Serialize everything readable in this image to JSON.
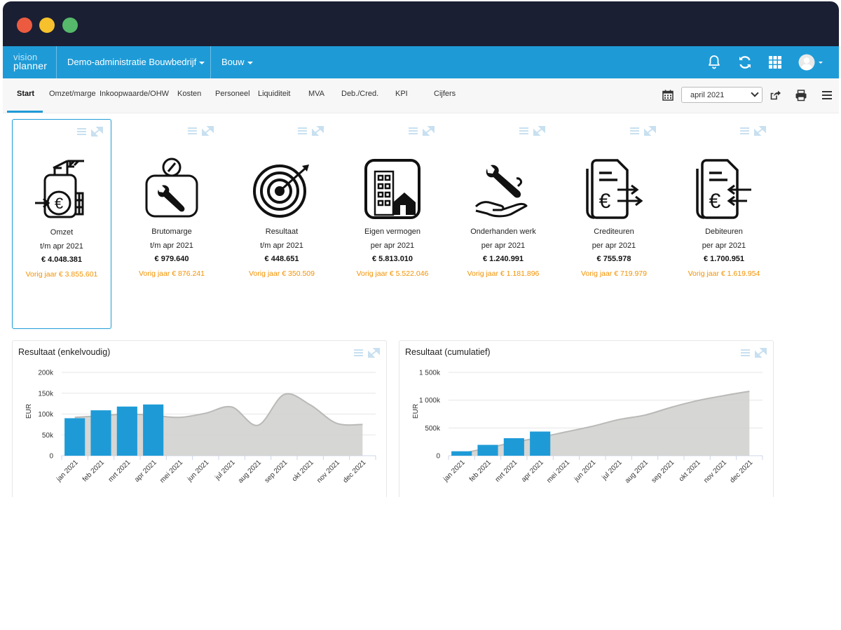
{
  "window": {
    "dots": [
      "#ec5b40",
      "#f6c12c",
      "#55b86a"
    ]
  },
  "app": {
    "logo_line1": "vision",
    "logo_line2": "planner",
    "administration": "Demo-administratie Bouwbedrijf",
    "sector": "Bouw",
    "icons": [
      "bell-icon",
      "sync-icon",
      "apps-grid-icon",
      "user-avatar-icon"
    ]
  },
  "nav": {
    "tabs": [
      "Start",
      "Omzet/marge",
      "Inkoopwaarde/OHW",
      "Kosten",
      "Personeel",
      "Liquiditeit",
      "MVA",
      "Deb./Cred.",
      "KPI",
      "Cijfers"
    ],
    "active_tab": "Start",
    "period": "april 2021",
    "icons": [
      "calendar-icon",
      "export-icon",
      "print-icon",
      "menu-icon"
    ]
  },
  "colors": {
    "accent": "#1e9bd7",
    "orange": "#f39200",
    "area": "#cfcfcd"
  },
  "tiles": [
    {
      "icon": "crane-euro-icon",
      "title": "Omzet",
      "period": "t/m apr 2021",
      "value": "€ 4.048.381",
      "prev": "Vorig jaar € 3.855.601"
    },
    {
      "icon": "wrench-scale-icon",
      "title": "Brutomarge",
      "period": "t/m apr 2021",
      "value": "€ 979.640",
      "prev": "Vorig jaar   € 876.241"
    },
    {
      "icon": "target-icon",
      "title": "Resultaat",
      "period": "t/m apr 2021",
      "value": "€ 448.651",
      "prev": "Vorig jaar   € 350.509"
    },
    {
      "icon": "buildings-icon",
      "title": "Eigen vermogen",
      "period": "per apr 2021",
      "value": "€ 5.813.010",
      "prev": "Vorig jaar € 5.522.046"
    },
    {
      "icon": "wrench-hand-icon",
      "title": "Onderhanden werk",
      "period": "per apr 2021",
      "value": "€ 1.240.991",
      "prev": "Vorig jaar € 1.181.896"
    },
    {
      "icon": "invoice-out-icon",
      "title": "Crediteuren",
      "period": "per apr 2021",
      "value": "€ 755.978",
      "prev": "Vorig jaar € 719.979"
    },
    {
      "icon": "invoice-in-icon",
      "title": "Debiteuren",
      "period": "per apr 2021",
      "value": "€ 1.700.951",
      "prev": "Vorig jaar € 1.619.954"
    }
  ],
  "chart_data": [
    {
      "type": "bar",
      "title": "Resultaat (enkelvoudig)",
      "xlabel": "",
      "ylabel": "EUR",
      "categories": [
        "jan 2021",
        "feb 2021",
        "mrt 2021",
        "apr 2021",
        "mei 2021",
        "jun 2021",
        "jul 2021",
        "aug 2021",
        "sep 2021",
        "okt 2021",
        "nov 2021",
        "dec 2021"
      ],
      "yticks": [
        "0",
        "50k",
        "100k",
        "150k",
        "200k"
      ],
      "ylim": [
        0,
        200000
      ],
      "grid": true,
      "series": [
        {
          "kind": "bar",
          "color": "#1e9bd7",
          "values": [
            90000,
            109000,
            118000,
            123000,
            null,
            null,
            null,
            null,
            null,
            null,
            null,
            null
          ]
        },
        {
          "kind": "area",
          "color": "#cfcfcd",
          "values": [
            92000,
            96000,
            100000,
            97000,
            92000,
            102000,
            117000,
            73000,
            147000,
            122000,
            78000,
            75000
          ]
        }
      ]
    },
    {
      "type": "bar",
      "title": "Resultaat (cumulatief)",
      "xlabel": "",
      "ylabel": "EUR",
      "categories": [
        "jan 2021",
        "feb 2021",
        "mrt 2021",
        "apr 2021",
        "mei 2021",
        "jun 2021",
        "jul 2021",
        "aug 2021",
        "sep 2021",
        "okt 2021",
        "nov 2021",
        "dec 2021"
      ],
      "yticks": [
        "0",
        "500k",
        "1 000k",
        "1 500k"
      ],
      "ylim": [
        0,
        1500000
      ],
      "grid": true,
      "series": [
        {
          "kind": "bar",
          "color": "#1e9bd7",
          "values": [
            80000,
            195000,
            315000,
            435000,
            null,
            null,
            null,
            null,
            null,
            null,
            null,
            null
          ]
        },
        {
          "kind": "area",
          "color": "#cfcfcd",
          "values": [
            40000,
            140000,
            240000,
            330000,
            430000,
            530000,
            650000,
            730000,
            870000,
            990000,
            1080000,
            1160000
          ]
        }
      ]
    }
  ]
}
